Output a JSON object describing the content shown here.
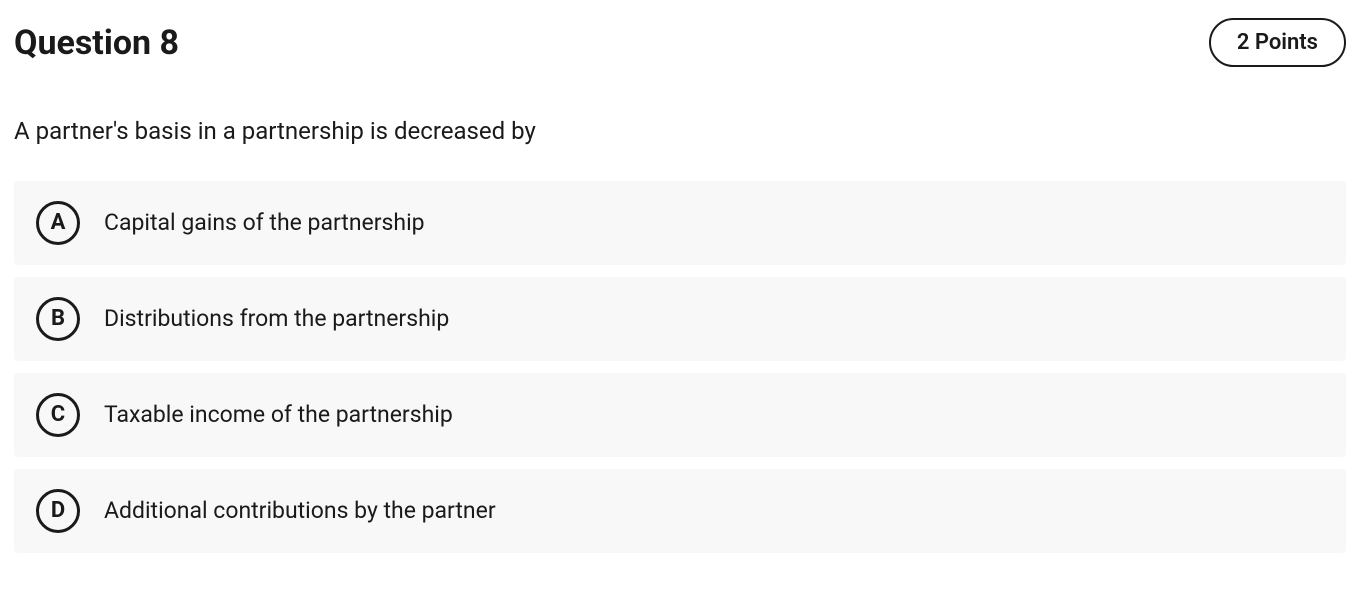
{
  "header": {
    "title": "Question 8",
    "points": "2 Points"
  },
  "prompt": "A partner's basis in a partnership is decreased by",
  "choices": [
    {
      "letter": "A",
      "text": "Capital gains of the partnership"
    },
    {
      "letter": "B",
      "text": "Distributions from the partnership"
    },
    {
      "letter": "C",
      "text": "Taxable income of the partnership"
    },
    {
      "letter": "D",
      "text": "Additional contributions by the partner"
    }
  ],
  "styles": {
    "background": "#ffffff",
    "choice_background": "#f8f8f8",
    "text_color": "#1a1a1a",
    "border_color": "#1a1a1a",
    "letter_circle_border_width": 3,
    "title_fontsize": 34,
    "prompt_fontsize": 24,
    "choice_fontsize": 23,
    "points_fontsize": 22
  }
}
